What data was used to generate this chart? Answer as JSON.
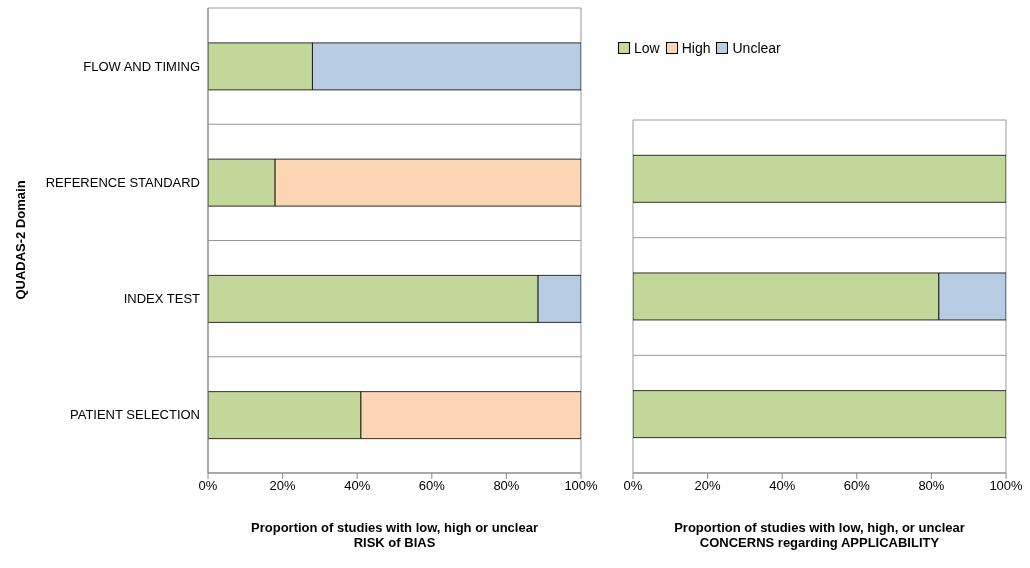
{
  "chart_data": [
    {
      "type": "bar",
      "orientation": "horizontal",
      "stacked": true,
      "ylabel": "QUADAS-2 Domain",
      "xlabel": "Proportion of studies with low, high or unclear\nRISK of BIAS",
      "categories": [
        "FLOW AND TIMING",
        "REFERENCE STANDARD",
        "INDEX TEST ",
        "PATIENT SELECTION"
      ],
      "series": [
        {
          "color": "#c4d79b",
          "values": [
            28,
            18,
            88.5,
            41
          ]
        },
        {
          "color": "#fcd5b4",
          "values": [
            0,
            82,
            0,
            59
          ]
        },
        {
          "color": "#b8cce4",
          "values": [
            72,
            0,
            11.5,
            0
          ]
        }
      ],
      "xlim": [
        0,
        100
      ],
      "xticks": [
        {
          "value": 0,
          "label": "0%"
        },
        {
          "value": 20,
          "label": "20%"
        },
        {
          "value": 40,
          "label": "40%"
        },
        {
          "value": 60,
          "label": "60%"
        },
        {
          "value": 80,
          "label": "80%"
        },
        {
          "value": 100,
          "label": "100%"
        }
      ],
      "grid": "y"
    },
    {
      "type": "bar",
      "orientation": "horizontal",
      "stacked": true,
      "xlabel": "Proportion of studies with low, high, or unclear\nCONCERNS regarding APPLICABILITY",
      "categories": [
        null,
        null,
        null
      ],
      "legend": "top",
      "series": [
        {
          "name": "Low",
          "color": "#c4d79b",
          "values": [
            100,
            82,
            100
          ]
        },
        {
          "name": "High",
          "color": "#fcd5b4",
          "values": [
            0,
            0,
            0
          ]
        },
        {
          "name": "Unclear",
          "color": "#b8cce4",
          "values": [
            0,
            18,
            0
          ]
        }
      ],
      "xlim": [
        0,
        100
      ],
      "xticks": [
        {
          "value": 0,
          "label": "0%"
        },
        {
          "value": 20,
          "label": "20%"
        },
        {
          "value": 40,
          "label": "40%"
        },
        {
          "value": 60,
          "label": "60%"
        },
        {
          "value": 80,
          "label": "80%"
        },
        {
          "value": 100,
          "label": "100%"
        }
      ],
      "grid": "y"
    }
  ]
}
